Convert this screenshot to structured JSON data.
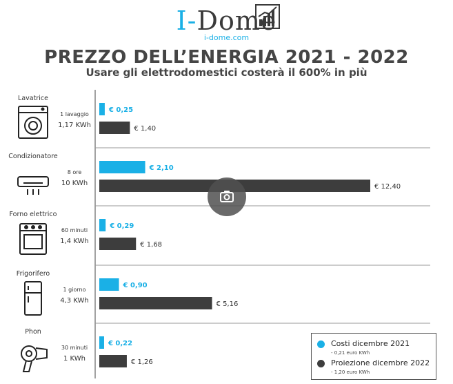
{
  "logo": {
    "word_accent": "I-",
    "word_rest": "Dome",
    "url": "i-dome.com"
  },
  "chart_data": {
    "type": "bar",
    "orientation": "horizontal",
    "title": "PREZZO DELL’ENERGIA 2021 - 2022",
    "subtitle": "Usare gli elettrodomestici costerà il 600% in più",
    "categories": [
      "Lavatrice",
      "Condizionatore",
      "Forno elettrico",
      "Frigorifero",
      "Phon"
    ],
    "durations": [
      "1 lavaggio",
      "8 ore",
      "60 minuti",
      "1 giorno",
      "30 minuti"
    ],
    "consumption": [
      "1,17 KWh",
      "10 KWh",
      "1,4 KWh",
      "4,3 KWh",
      "1 KWh"
    ],
    "series": [
      {
        "name": "Costi dicembre 2021",
        "note": "- 0,21 euro KWh",
        "color": "#1ab0e6",
        "values": [
          0.25,
          2.1,
          0.29,
          0.9,
          0.22
        ],
        "labels": [
          "€ 0,25",
          "€ 2,10",
          "€ 0,29",
          "€ 0,90",
          "€ 0,22"
        ]
      },
      {
        "name": "Proiezione dicembre 2022",
        "note": "- 1,20 euro KWh",
        "color": "#3d3d3d",
        "values": [
          1.4,
          12.4,
          1.68,
          5.16,
          1.26
        ],
        "labels": [
          "€ 1,40",
          "€ 12,40",
          "€ 1,68",
          "€ 5,16",
          "€ 1,26"
        ]
      }
    ],
    "icons": [
      "washing-machine-icon",
      "air-conditioner-icon",
      "oven-icon",
      "fridge-icon",
      "hair-dryer-icon"
    ],
    "xlim": [
      0,
      12.4
    ],
    "legend_position": "bottom-right"
  }
}
